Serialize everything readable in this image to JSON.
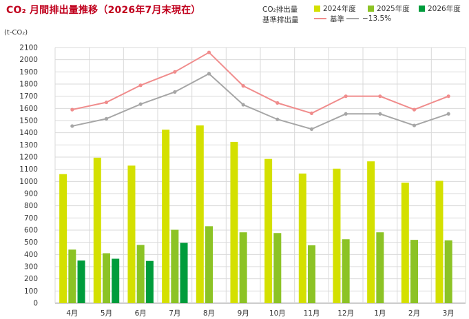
{
  "header": {
    "title": "CO₂ 月間排出量推移（2026年7月末現在）",
    "unit_label": "(t-CO₂)"
  },
  "legend": {
    "co2_group_label": "CO₂排出量",
    "baseline_group_label": "基準排出量",
    "items": [
      {
        "label": "2024年度",
        "color": "#d4e000",
        "kind": "bar"
      },
      {
        "label": "2025年度",
        "color": "#8cc325",
        "kind": "bar"
      },
      {
        "label": "2026年度",
        "color": "#009c3c",
        "kind": "bar"
      },
      {
        "label": "基準",
        "color": "#f08c8c",
        "kind": "line"
      },
      {
        "label": "−13.5%",
        "color": "#a6a6a6",
        "kind": "line"
      }
    ]
  },
  "chart_data": {
    "type": "bar",
    "title": "CO₂ 月間排出量推移（2026年7月末現在）",
    "ylabel": "(t-CO₂)",
    "xlabel": "",
    "ylim": [
      0,
      2100
    ],
    "yticks": [
      0,
      100,
      200,
      300,
      400,
      500,
      600,
      700,
      800,
      900,
      1000,
      1100,
      1200,
      1300,
      1400,
      1500,
      1600,
      1700,
      1800,
      1900,
      2000,
      2100
    ],
    "grid": true,
    "legend_position": "top-right",
    "categories": [
      "4月",
      "5月",
      "6月",
      "7月",
      "8月",
      "9月",
      "10月",
      "11月",
      "12月",
      "1月",
      "2月",
      "3月"
    ],
    "series": [
      {
        "name": "2024年度",
        "kind": "bar",
        "color": "#d4e000",
        "values": [
          1060,
          1195,
          1130,
          1425,
          1460,
          1325,
          1185,
          1065,
          1105,
          1165,
          990,
          1005
        ]
      },
      {
        "name": "2025年度",
        "kind": "bar",
        "color": "#8cc325",
        "values": [
          440,
          410,
          478,
          603,
          632,
          582,
          576,
          475,
          525,
          582,
          520,
          516
        ]
      },
      {
        "name": "2026年度",
        "kind": "bar",
        "color": "#009c3c",
        "values": [
          350,
          365,
          347,
          495,
          null,
          null,
          null,
          null,
          null,
          null,
          null,
          null
        ]
      },
      {
        "name": "基準",
        "kind": "line",
        "color": "#f08c8c",
        "values": [
          1590,
          1650,
          1790,
          1900,
          2060,
          1785,
          1645,
          1560,
          1700,
          1700,
          1590,
          1700
        ]
      },
      {
        "name": "−13.5%",
        "kind": "line",
        "color": "#a6a6a6",
        "values": [
          1455,
          1515,
          1635,
          1735,
          1885,
          1630,
          1510,
          1430,
          1555,
          1555,
          1460,
          1555
        ]
      }
    ]
  }
}
